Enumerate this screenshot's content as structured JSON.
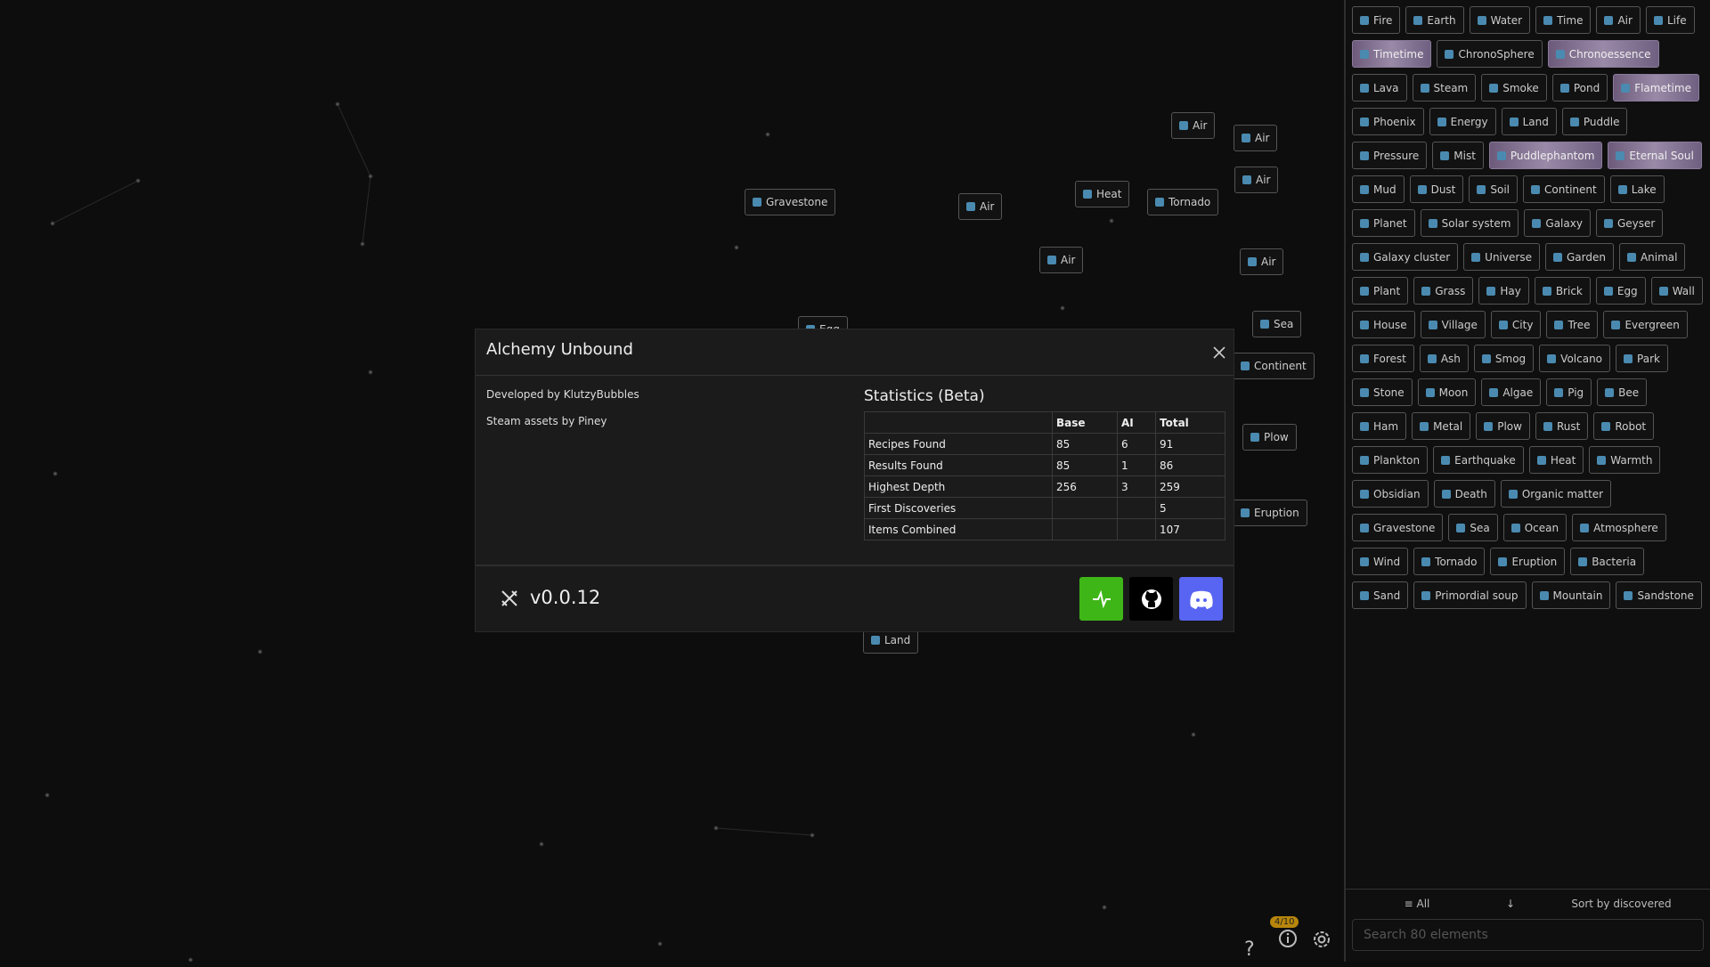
{
  "modal": {
    "title": "Alchemy Unbound",
    "credits": [
      "Developed by KlutzyBubbles",
      "Steam assets by Piney"
    ],
    "stats": {
      "title": "Statistics (Beta)",
      "header": [
        null,
        "Base",
        "AI",
        "Total"
      ],
      "rows": [
        [
          "Recipes Found",
          85,
          6,
          91
        ],
        [
          "Results Found",
          85,
          1,
          86
        ],
        [
          "Highest Depth",
          256,
          3,
          259
        ],
        [
          "First Discoveries",
          null,
          null,
          5
        ],
        [
          "Items Combined",
          null,
          null,
          107
        ]
      ]
    },
    "version": "v0.0.12"
  },
  "canvas": {
    "items": [
      "Gravestone",
      "Air",
      "Heat",
      "Tornado",
      "Air",
      "Air",
      "Air",
      "Air",
      "Air",
      "Sea",
      "Continent",
      "Plow",
      "Eruption",
      "Egg",
      "Land"
    ],
    "badge": "4/10"
  },
  "sidebar": {
    "elements": [
      {
        "name": "Fire"
      },
      {
        "name": "Earth"
      },
      {
        "name": "Water"
      },
      {
        "name": "Time"
      },
      {
        "name": "Air"
      },
      {
        "name": "Life"
      },
      {
        "name": "Timetime",
        "special": true
      },
      {
        "name": "ChronoSphere"
      },
      {
        "name": "Chronoessence",
        "special": true
      },
      {
        "name": "Lava"
      },
      {
        "name": "Steam"
      },
      {
        "name": "Smoke"
      },
      {
        "name": "Pond"
      },
      {
        "name": "Flametime",
        "special": true
      },
      {
        "name": "Phoenix"
      },
      {
        "name": "Energy"
      },
      {
        "name": "Land"
      },
      {
        "name": "Puddle"
      },
      {
        "name": "Pressure"
      },
      {
        "name": "Mist"
      },
      {
        "name": "Puddlephantom",
        "special": true
      },
      {
        "name": "Eternal Soul",
        "special": true
      },
      {
        "name": "Mud"
      },
      {
        "name": "Dust"
      },
      {
        "name": "Soil"
      },
      {
        "name": "Continent"
      },
      {
        "name": "Lake"
      },
      {
        "name": "Planet"
      },
      {
        "name": "Solar system"
      },
      {
        "name": "Galaxy"
      },
      {
        "name": "Geyser"
      },
      {
        "name": "Galaxy cluster"
      },
      {
        "name": "Universe"
      },
      {
        "name": "Garden"
      },
      {
        "name": "Animal"
      },
      {
        "name": "Plant"
      },
      {
        "name": "Grass"
      },
      {
        "name": "Hay"
      },
      {
        "name": "Brick"
      },
      {
        "name": "Egg"
      },
      {
        "name": "Wall"
      },
      {
        "name": "House"
      },
      {
        "name": "Village"
      },
      {
        "name": "City"
      },
      {
        "name": "Tree"
      },
      {
        "name": "Evergreen"
      },
      {
        "name": "Forest"
      },
      {
        "name": "Ash"
      },
      {
        "name": "Smog"
      },
      {
        "name": "Volcano"
      },
      {
        "name": "Park"
      },
      {
        "name": "Stone"
      },
      {
        "name": "Moon"
      },
      {
        "name": "Algae"
      },
      {
        "name": "Pig"
      },
      {
        "name": "Bee"
      },
      {
        "name": "Ham"
      },
      {
        "name": "Metal"
      },
      {
        "name": "Plow"
      },
      {
        "name": "Rust"
      },
      {
        "name": "Robot"
      },
      {
        "name": "Plankton"
      },
      {
        "name": "Earthquake"
      },
      {
        "name": "Heat"
      },
      {
        "name": "Warmth"
      },
      {
        "name": "Obsidian"
      },
      {
        "name": "Death"
      },
      {
        "name": "Organic matter"
      },
      {
        "name": "Gravestone"
      },
      {
        "name": "Sea"
      },
      {
        "name": "Ocean"
      },
      {
        "name": "Atmosphere"
      },
      {
        "name": "Wind"
      },
      {
        "name": "Tornado"
      },
      {
        "name": "Eruption"
      },
      {
        "name": "Bacteria"
      },
      {
        "name": "Sand"
      },
      {
        "name": "Primordial soup"
      },
      {
        "name": "Mountain"
      },
      {
        "name": "Sandstone"
      }
    ],
    "filter": "All",
    "sort": "Sort by discovered",
    "search_placeholder": "Search 80 elements"
  }
}
